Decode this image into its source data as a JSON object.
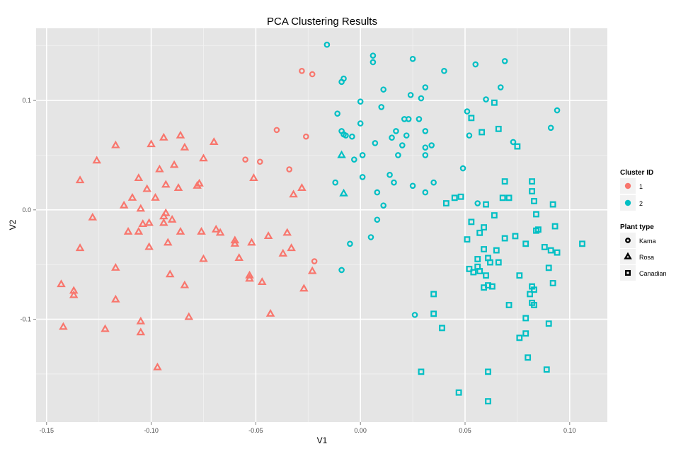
{
  "colors": {
    "panel_bg": "#e5e5e5",
    "grid_major": "#ffffff",
    "grid_minor": "#f2f2f2",
    "cluster_1": "#f8766d",
    "cluster_2": "#00bfc4"
  },
  "chart_data": {
    "type": "scatter",
    "title": "PCA Clustering Results",
    "xlabel": "V1",
    "ylabel": "V2",
    "xlim": [
      -0.155,
      0.118
    ],
    "ylim": [
      -0.194,
      0.166
    ],
    "x_ticks": [
      -0.15,
      -0.1,
      -0.05,
      0.0,
      0.05,
      0.1
    ],
    "x_tick_labels": [
      "-0.15",
      "-0.10",
      "-0.05",
      "0.00",
      "0.05",
      "0.10"
    ],
    "y_ticks": [
      -0.1,
      0.0,
      0.1
    ],
    "y_tick_labels": [
      "-0.1",
      "0.0",
      "0.1"
    ],
    "grid": true,
    "legend": {
      "placement": "right",
      "color_title": "Cluster ID",
      "color_entries": [
        {
          "label": "1",
          "color": "#f8766d"
        },
        {
          "label": "2",
          "color": "#00bfc4"
        }
      ],
      "shape_title": "Plant type",
      "shape_entries": [
        {
          "label": "Kama",
          "shape": "circle"
        },
        {
          "label": "Rosa",
          "shape": "triangle"
        },
        {
          "label": "Canadian",
          "shape": "square"
        }
      ]
    },
    "series": [
      {
        "cluster": "1",
        "shape": "circle",
        "color": "#f8766d",
        "points": [
          [
            -0.028,
            0.127
          ],
          [
            -0.023,
            0.124
          ],
          [
            -0.04,
            0.073
          ],
          [
            -0.026,
            0.067
          ],
          [
            -0.055,
            0.046
          ],
          [
            -0.048,
            0.044
          ],
          [
            -0.034,
            0.037
          ],
          [
            -0.022,
            -0.047
          ]
        ]
      },
      {
        "cluster": "1",
        "shape": "triangle",
        "color": "#f8766d",
        "points": [
          [
            -0.117,
            0.059
          ],
          [
            -0.1,
            0.06
          ],
          [
            -0.094,
            0.066
          ],
          [
            -0.086,
            0.068
          ],
          [
            -0.07,
            0.062
          ],
          [
            -0.084,
            0.057
          ],
          [
            -0.126,
            0.045
          ],
          [
            -0.096,
            0.037
          ],
          [
            -0.089,
            0.041
          ],
          [
            -0.075,
            0.047
          ],
          [
            -0.134,
            0.027
          ],
          [
            -0.106,
            0.029
          ],
          [
            -0.093,
            0.023
          ],
          [
            -0.087,
            0.02
          ],
          [
            -0.102,
            0.019
          ],
          [
            -0.078,
            0.022
          ],
          [
            -0.077,
            0.024
          ],
          [
            -0.051,
            0.029
          ],
          [
            -0.109,
            0.011
          ],
          [
            -0.098,
            0.011
          ],
          [
            -0.113,
            0.004
          ],
          [
            -0.105,
            0.001
          ],
          [
            -0.028,
            0.02
          ],
          [
            -0.032,
            0.014
          ],
          [
            -0.128,
            -0.007
          ],
          [
            -0.093,
            -0.003
          ],
          [
            -0.094,
            -0.006
          ],
          [
            -0.09,
            -0.009
          ],
          [
            -0.101,
            -0.012
          ],
          [
            -0.104,
            -0.013
          ],
          [
            -0.094,
            -0.012
          ],
          [
            -0.111,
            -0.02
          ],
          [
            -0.106,
            -0.02
          ],
          [
            -0.086,
            -0.02
          ],
          [
            -0.076,
            -0.02
          ],
          [
            -0.069,
            -0.018
          ],
          [
            -0.067,
            -0.021
          ],
          [
            -0.06,
            -0.028
          ],
          [
            -0.06,
            -0.031
          ],
          [
            -0.052,
            -0.03
          ],
          [
            -0.044,
            -0.024
          ],
          [
            -0.035,
            -0.021
          ],
          [
            -0.134,
            -0.035
          ],
          [
            -0.101,
            -0.034
          ],
          [
            -0.092,
            -0.03
          ],
          [
            -0.033,
            -0.035
          ],
          [
            -0.037,
            -0.04
          ],
          [
            -0.058,
            -0.044
          ],
          [
            -0.075,
            -0.045
          ],
          [
            -0.117,
            -0.053
          ],
          [
            -0.091,
            -0.059
          ],
          [
            -0.053,
            -0.06
          ],
          [
            -0.053,
            -0.063
          ],
          [
            -0.023,
            -0.056
          ],
          [
            -0.143,
            -0.068
          ],
          [
            -0.137,
            -0.074
          ],
          [
            -0.137,
            -0.078
          ],
          [
            -0.084,
            -0.069
          ],
          [
            -0.047,
            -0.066
          ],
          [
            -0.027,
            -0.072
          ],
          [
            -0.117,
            -0.082
          ],
          [
            -0.082,
            -0.098
          ],
          [
            -0.043,
            -0.095
          ],
          [
            -0.105,
            -0.102
          ],
          [
            -0.142,
            -0.107
          ],
          [
            -0.122,
            -0.109
          ],
          [
            -0.105,
            -0.112
          ],
          [
            -0.097,
            -0.144
          ]
        ]
      },
      {
        "cluster": "2",
        "shape": "circle",
        "color": "#00bfc4",
        "points": [
          [
            -0.016,
            0.151
          ],
          [
            0.006,
            0.141
          ],
          [
            0.006,
            0.135
          ],
          [
            0.025,
            0.138
          ],
          [
            0.055,
            0.133
          ],
          [
            0.069,
            0.136
          ],
          [
            -0.008,
            0.12
          ],
          [
            -0.009,
            0.117
          ],
          [
            0.04,
            0.127
          ],
          [
            0.011,
            0.11
          ],
          [
            0.031,
            0.112
          ],
          [
            0.067,
            0.112
          ],
          [
            0.024,
            0.105
          ],
          [
            0.029,
            0.102
          ],
          [
            0.0,
            0.099
          ],
          [
            0.06,
            0.101
          ],
          [
            0.01,
            0.094
          ],
          [
            0.051,
            0.09
          ],
          [
            0.094,
            0.091
          ],
          [
            -0.011,
            0.088
          ],
          [
            0.021,
            0.083
          ],
          [
            0.023,
            0.083
          ],
          [
            0.028,
            0.083
          ],
          [
            0.0,
            0.079
          ],
          [
            0.091,
            0.075
          ],
          [
            -0.009,
            0.072
          ],
          [
            0.017,
            0.072
          ],
          [
            0.031,
            0.072
          ],
          [
            -0.008,
            0.069
          ],
          [
            -0.007,
            0.068
          ],
          [
            -0.004,
            0.067
          ],
          [
            0.015,
            0.066
          ],
          [
            0.052,
            0.068
          ],
          [
            0.022,
            0.068
          ],
          [
            0.02,
            0.059
          ],
          [
            0.031,
            0.057
          ],
          [
            0.034,
            0.059
          ],
          [
            0.073,
            0.062
          ],
          [
            0.007,
            0.061
          ],
          [
            -0.003,
            0.046
          ],
          [
            0.001,
            0.05
          ],
          [
            0.018,
            0.05
          ],
          [
            0.031,
            0.05
          ],
          [
            0.049,
            0.038
          ],
          [
            0.014,
            0.032
          ],
          [
            0.001,
            0.03
          ],
          [
            -0.012,
            0.025
          ],
          [
            0.016,
            0.025
          ],
          [
            0.025,
            0.022
          ],
          [
            0.035,
            0.025
          ],
          [
            0.008,
            0.016
          ],
          [
            0.031,
            0.016
          ],
          [
            0.011,
            0.004
          ],
          [
            0.008,
            -0.009
          ],
          [
            0.056,
            0.006
          ],
          [
            -0.005,
            -0.031
          ],
          [
            0.005,
            -0.025
          ],
          [
            -0.009,
            -0.055
          ],
          [
            0.026,
            -0.096
          ]
        ]
      },
      {
        "cluster": "2",
        "shape": "triangle",
        "color": "#00bfc4",
        "points": [
          [
            -0.009,
            0.05
          ],
          [
            -0.008,
            0.015
          ]
        ]
      },
      {
        "cluster": "2",
        "shape": "square",
        "color": "#00bfc4",
        "points": [
          [
            0.053,
            0.084
          ],
          [
            0.064,
            0.098
          ],
          [
            0.066,
            0.074
          ],
          [
            0.058,
            0.071
          ],
          [
            0.075,
            0.058
          ],
          [
            0.069,
            0.026
          ],
          [
            0.082,
            0.026
          ],
          [
            0.082,
            0.017
          ],
          [
            0.045,
            0.011
          ],
          [
            0.048,
            0.012
          ],
          [
            0.041,
            0.006
          ],
          [
            0.06,
            0.005
          ],
          [
            0.068,
            0.011
          ],
          [
            0.071,
            0.011
          ],
          [
            0.083,
            0.008
          ],
          [
            0.092,
            0.005
          ],
          [
            0.064,
            -0.005
          ],
          [
            0.084,
            -0.004
          ],
          [
            0.053,
            -0.011
          ],
          [
            0.059,
            -0.016
          ],
          [
            0.084,
            -0.019
          ],
          [
            0.085,
            -0.018
          ],
          [
            0.093,
            -0.015
          ],
          [
            0.057,
            -0.021
          ],
          [
            0.069,
            -0.026
          ],
          [
            0.074,
            -0.024
          ],
          [
            0.051,
            -0.027
          ],
          [
            0.079,
            -0.031
          ],
          [
            0.106,
            -0.031
          ],
          [
            0.059,
            -0.036
          ],
          [
            0.065,
            -0.037
          ],
          [
            0.088,
            -0.034
          ],
          [
            0.091,
            -0.037
          ],
          [
            0.094,
            -0.039
          ],
          [
            0.056,
            -0.045
          ],
          [
            0.061,
            -0.044
          ],
          [
            0.062,
            -0.048
          ],
          [
            0.066,
            -0.048
          ],
          [
            0.056,
            -0.052
          ],
          [
            0.052,
            -0.054
          ],
          [
            0.057,
            -0.056
          ],
          [
            0.054,
            -0.057
          ],
          [
            0.06,
            -0.06
          ],
          [
            0.076,
            -0.06
          ],
          [
            0.09,
            -0.053
          ],
          [
            0.061,
            -0.069
          ],
          [
            0.063,
            -0.07
          ],
          [
            0.059,
            -0.071
          ],
          [
            0.082,
            -0.07
          ],
          [
            0.083,
            -0.073
          ],
          [
            0.092,
            -0.067
          ],
          [
            0.035,
            -0.077
          ],
          [
            0.081,
            -0.077
          ],
          [
            0.082,
            -0.085
          ],
          [
            0.083,
            -0.087
          ],
          [
            0.071,
            -0.087
          ],
          [
            0.035,
            -0.095
          ],
          [
            0.079,
            -0.099
          ],
          [
            0.039,
            -0.108
          ],
          [
            0.09,
            -0.104
          ],
          [
            0.079,
            -0.113
          ],
          [
            0.076,
            -0.117
          ],
          [
            0.08,
            -0.135
          ],
          [
            0.029,
            -0.148
          ],
          [
            0.061,
            -0.148
          ],
          [
            0.089,
            -0.146
          ],
          [
            0.047,
            -0.167
          ],
          [
            0.061,
            -0.175
          ]
        ]
      }
    ]
  }
}
